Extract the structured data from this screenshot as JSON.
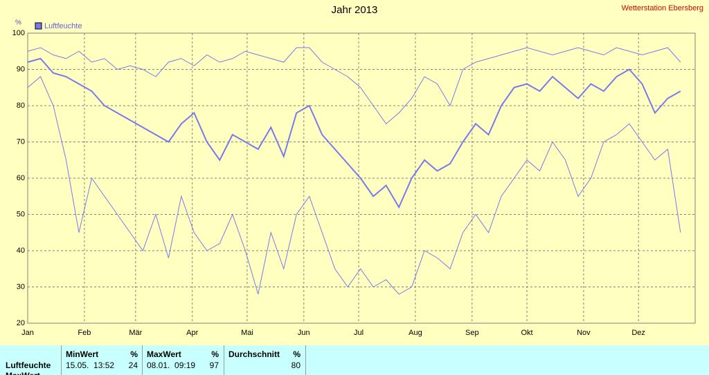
{
  "chart_data": {
    "type": "line",
    "title": "Jahr 2013",
    "station": "Wetterstation Ebersberg",
    "y_unit": "%",
    "legend": "Luftfeuchte",
    "x": [
      1,
      8,
      15,
      22,
      29,
      36,
      43,
      50,
      57,
      64,
      71,
      78,
      85,
      92,
      99,
      106,
      113,
      120,
      127,
      134,
      141,
      148,
      155,
      162,
      169,
      176,
      183,
      190,
      197,
      204,
      211,
      218,
      225,
      232,
      239,
      246,
      253,
      260,
      267,
      274,
      281,
      288,
      295,
      302,
      309,
      316,
      323,
      330,
      337,
      344,
      351,
      358
    ],
    "xlim": [
      1,
      366
    ],
    "xticks": [
      {
        "value": 1,
        "label": "Jan"
      },
      {
        "value": 32,
        "label": "Feb"
      },
      {
        "value": 60,
        "label": "Mär"
      },
      {
        "value": 91,
        "label": "Apr"
      },
      {
        "value": 121,
        "label": "Mai"
      },
      {
        "value": 152,
        "label": "Jun"
      },
      {
        "value": 182,
        "label": "Jul"
      },
      {
        "value": 213,
        "label": "Aug"
      },
      {
        "value": 244,
        "label": "Sep"
      },
      {
        "value": 274,
        "label": "Okt"
      },
      {
        "value": 305,
        "label": "Nov"
      },
      {
        "value": 335,
        "label": "Dez"
      }
    ],
    "ylim": [
      20,
      100
    ],
    "yticks": [
      20,
      30,
      40,
      50,
      60,
      70,
      80,
      90,
      100
    ],
    "grid": true,
    "series": [
      {
        "color": "#7878f0",
        "width": 1,
        "values": [
          95,
          96,
          94,
          93,
          95,
          92,
          93,
          90,
          91,
          90,
          88,
          92,
          93,
          91,
          94,
          92,
          93,
          95,
          94,
          93,
          92,
          96,
          96,
          92,
          90,
          88,
          85,
          80,
          75,
          78,
          82,
          88,
          86,
          80,
          90,
          92,
          93,
          94,
          95,
          96,
          95,
          94,
          95,
          96,
          95,
          94,
          96,
          95,
          94,
          95,
          96,
          92
        ]
      },
      {
        "color": "#7878f0",
        "width": 2,
        "values": [
          92,
          93,
          89,
          88,
          86,
          84,
          80,
          78,
          76,
          74,
          72,
          70,
          75,
          78,
          70,
          65,
          72,
          70,
          68,
          74,
          66,
          78,
          80,
          72,
          68,
          64,
          60,
          55,
          58,
          52,
          60,
          65,
          62,
          64,
          70,
          75,
          72,
          80,
          85,
          86,
          84,
          88,
          85,
          82,
          86,
          84,
          88,
          90,
          86,
          78,
          82,
          84
        ]
      },
      {
        "color": "#7878f0",
        "width": 1,
        "values": [
          85,
          88,
          80,
          65,
          45,
          60,
          55,
          50,
          45,
          40,
          50,
          38,
          55,
          45,
          40,
          42,
          50,
          40,
          28,
          45,
          35,
          50,
          55,
          45,
          35,
          30,
          35,
          30,
          32,
          28,
          30,
          40,
          38,
          35,
          45,
          50,
          45,
          55,
          60,
          65,
          62,
          70,
          65,
          55,
          60,
          70,
          72,
          75,
          70,
          65,
          68,
          45
        ]
      }
    ]
  },
  "stats": {
    "columns": [
      {
        "title": "MinWert",
        "unit": "%"
      },
      {
        "title": "MaxWert",
        "unit": "%"
      },
      {
        "title": "Durchschnitt",
        "unit": "%"
      }
    ],
    "rows": [
      {
        "label": "Luftfeuchte",
        "cells": [
          {
            "when": "15.05.  13:52",
            "value": "24"
          },
          {
            "when": "08.01.  09:19",
            "value": "97"
          },
          {
            "value": "80"
          }
        ]
      },
      {
        "label": "MaxWert"
      }
    ]
  }
}
